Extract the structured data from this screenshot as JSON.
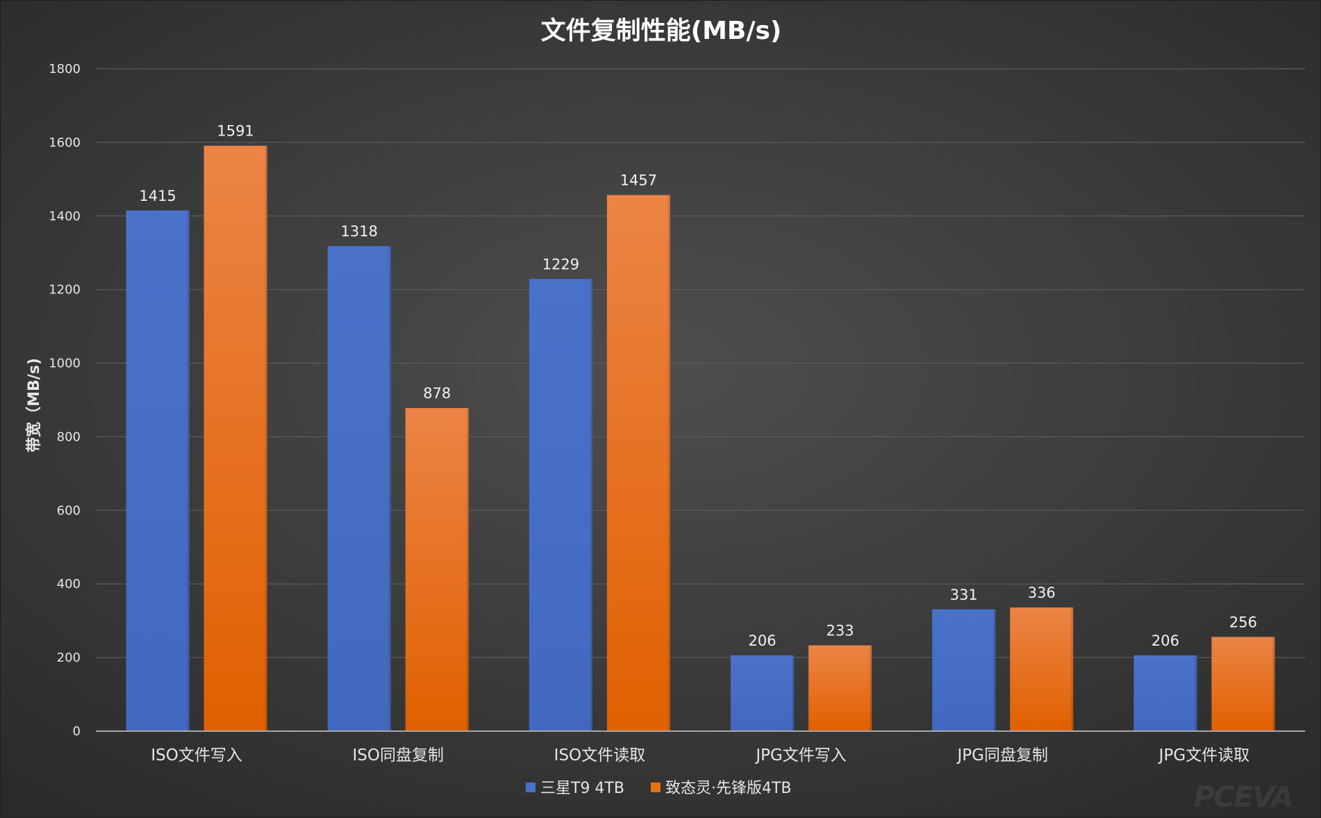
{
  "chart_data": {
    "type": "bar",
    "title": "文件复制性能(MB/s)",
    "ylabel": "带宽（MB/s)",
    "xlabel": "",
    "ylim": [
      0,
      1800
    ],
    "yticks": [
      0,
      200,
      400,
      600,
      800,
      1000,
      1200,
      1400,
      1600,
      1800
    ],
    "grid": true,
    "legend_position": "bottom",
    "categories": [
      "ISO文件写入",
      "ISO同盘复制",
      "ISO文件读取",
      "JPG文件写入",
      "JPG同盘复制",
      "JPG文件读取"
    ],
    "series": [
      {
        "name": "三星T9 4TB",
        "color": "#4472c4",
        "values": [
          1415,
          1318,
          1229,
          206,
          331,
          206
        ]
      },
      {
        "name": "致态灵·先锋版4TB",
        "color": "#e8720f",
        "values": [
          1591,
          878,
          1457,
          233,
          336,
          256
        ]
      }
    ],
    "data_labels": true
  },
  "watermark": "PCEVA"
}
